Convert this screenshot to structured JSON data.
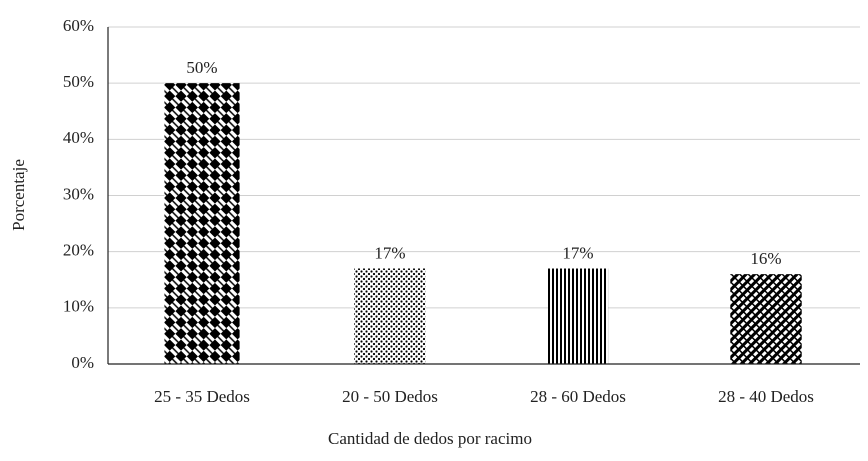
{
  "chart_data": {
    "type": "bar",
    "categories": [
      "25 - 35 Dedos",
      "20 - 50 Dedos",
      "28 - 60 Dedos",
      "28 - 40 Dedos"
    ],
    "values": [
      50,
      17,
      17,
      16
    ],
    "value_labels": [
      "50%",
      "17%",
      "17%",
      "16%"
    ],
    "color": "#000000",
    "xlabel": "Cantidad de dedos por racimo",
    "ylabel": "Porcentaje",
    "ylim": [
      0,
      60
    ],
    "yticks": [
      {
        "value": 0,
        "label": "0%"
      },
      {
        "value": 10,
        "label": "10%"
      },
      {
        "value": 20,
        "label": "20%"
      },
      {
        "value": 30,
        "label": "30%"
      },
      {
        "value": 40,
        "label": "40%"
      },
      {
        "value": 50,
        "label": "50%"
      },
      {
        "value": 60,
        "label": "60%"
      }
    ],
    "grid": true
  }
}
